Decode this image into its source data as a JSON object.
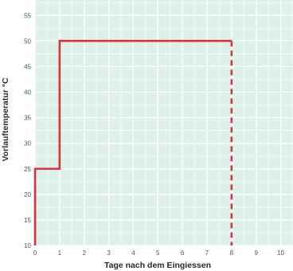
{
  "chart_data": {
    "type": "line",
    "title": "",
    "xlabel": "Tage nach dem Eingiessen",
    "ylabel": "Vorlauftemperatur °C",
    "xlim": [
      0,
      10.5
    ],
    "ylim": [
      10,
      58
    ],
    "x_ticks": [
      0,
      1,
      2,
      3,
      4,
      5,
      6,
      7,
      8,
      9,
      10
    ],
    "y_ticks": [
      10,
      15,
      20,
      25,
      30,
      35,
      40,
      45,
      50,
      55
    ],
    "grid": true,
    "series": [
      {
        "color": "#e0303a",
        "style": "solid",
        "x": [
          0,
          0,
          1,
          1,
          8
        ],
        "y": [
          10,
          25,
          25,
          50,
          50
        ]
      },
      {
        "color": "#e0303a",
        "style": "dashed",
        "x": [
          8,
          8
        ],
        "y": [
          50,
          10
        ]
      }
    ],
    "background_color": "#ddf1ea",
    "grid_color": "#ffffff"
  }
}
